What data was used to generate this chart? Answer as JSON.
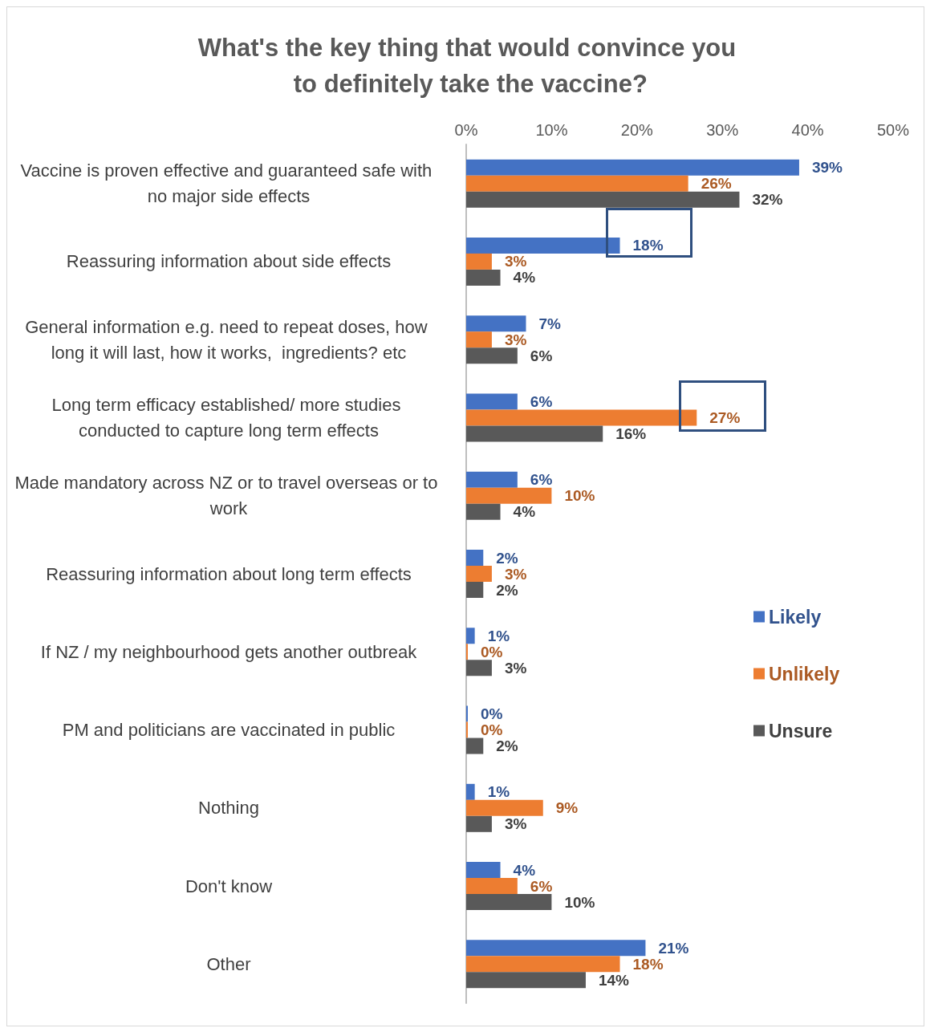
{
  "chart_data": {
    "type": "bar",
    "orientation": "horizontal",
    "title": "What's the key thing that would convince you to definitely take the vaccine?",
    "categories": [
      "Vaccine is proven effective and guaranteed safe with no major side effects",
      "Reassuring information about side effects",
      "General information e.g. need to repeat doses, how long it will last, how it works,  ingredients? etc",
      "Long term efficacy established/ more studies conducted to capture long term effects",
      "Made mandatory across NZ or to travel overseas or to work",
      "Reassuring information about long term effects",
      "If NZ / my neighbourhood gets another outbreak",
      "PM and politicians are vaccinated in public",
      "Nothing",
      "Don't know",
      "Other"
    ],
    "series": [
      {
        "name": "Likely",
        "color": "#4472c4",
        "values": [
          39,
          18,
          7,
          6,
          6,
          2,
          1,
          0,
          1,
          4,
          21
        ],
        "value_labels": [
          "39%",
          "18%",
          "7%",
          "6%",
          "6%",
          "2%",
          "1%",
          "0%",
          "1%",
          "4%",
          "21%"
        ]
      },
      {
        "name": "Unlikely",
        "color": "#ed7d31",
        "values": [
          26,
          3,
          3,
          27,
          10,
          3,
          0,
          0,
          9,
          6,
          18
        ],
        "value_labels": [
          "26%",
          "3%",
          "3%",
          "27%",
          "10%",
          "3%",
          "0%",
          "0%",
          "9%",
          "6%",
          "18%"
        ]
      },
      {
        "name": "Unsure",
        "color": "#595959",
        "values": [
          32,
          4,
          6,
          16,
          4,
          2,
          3,
          2,
          3,
          10,
          14
        ],
        "value_labels": [
          "32%",
          "4%",
          "6%",
          "16%",
          "4%",
          "2%",
          "3%",
          "2%",
          "3%",
          "10%",
          "14%"
        ]
      }
    ],
    "xlim": [
      0,
      50
    ],
    "xticks": [
      {
        "value": 0,
        "label": "0%"
      },
      {
        "value": 10,
        "label": "10%"
      },
      {
        "value": 20,
        "label": "20%"
      },
      {
        "value": 30,
        "label": "30%"
      },
      {
        "value": 40,
        "label": "40%"
      },
      {
        "value": 50,
        "label": "50%"
      }
    ],
    "grid": false,
    "legend": "right"
  }
}
